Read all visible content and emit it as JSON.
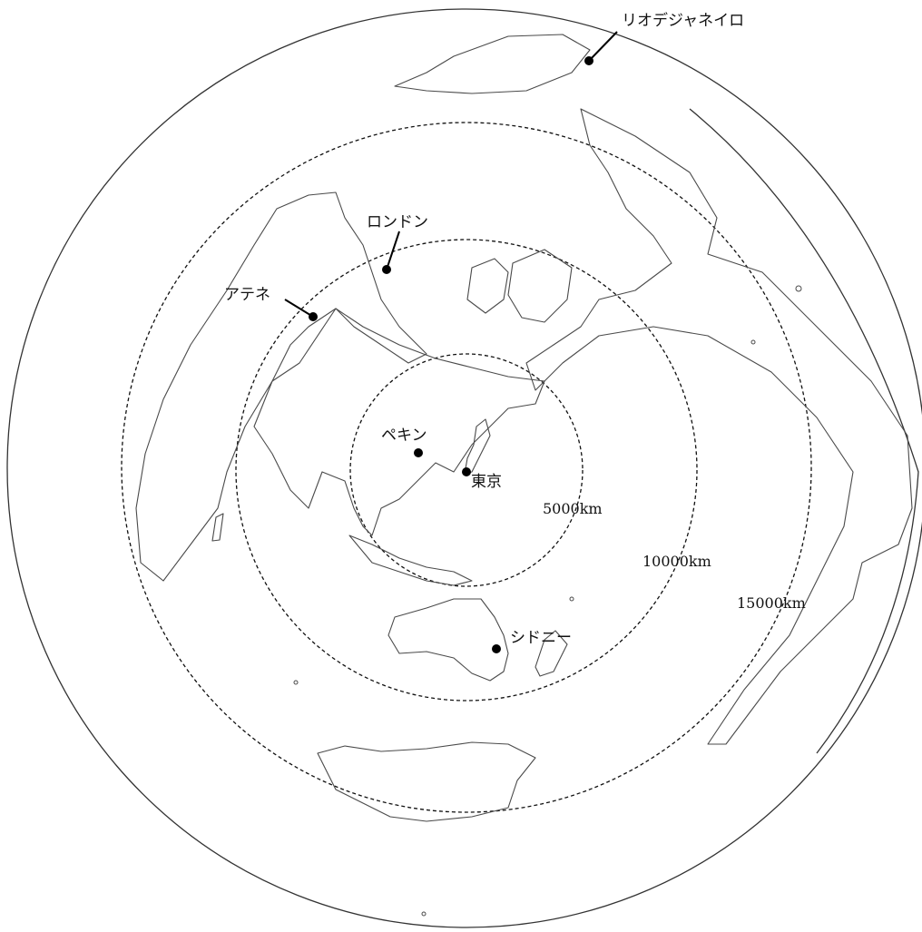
{
  "map": {
    "projection": "azimuthal equidistant",
    "center_city": "東京",
    "rings": [
      {
        "km": 5000,
        "label": "5000km",
        "style": "dashed"
      },
      {
        "km": 10000,
        "label": "10000km",
        "style": "dashed"
      },
      {
        "km": 15000,
        "label": "15000km",
        "style": "dashed"
      }
    ],
    "cities": [
      {
        "id": "rio",
        "label": "リオデジャネイロ"
      },
      {
        "id": "london",
        "label": "ロンドン"
      },
      {
        "id": "athens",
        "label": "アテネ"
      },
      {
        "id": "beijing",
        "label": "ペキン"
      },
      {
        "id": "tokyo",
        "label": "東京"
      },
      {
        "id": "sydney",
        "label": "シドニー"
      }
    ],
    "colors": {
      "coastline": "#4a4a4a",
      "markers": "#000000",
      "rings": "#111111"
    }
  }
}
